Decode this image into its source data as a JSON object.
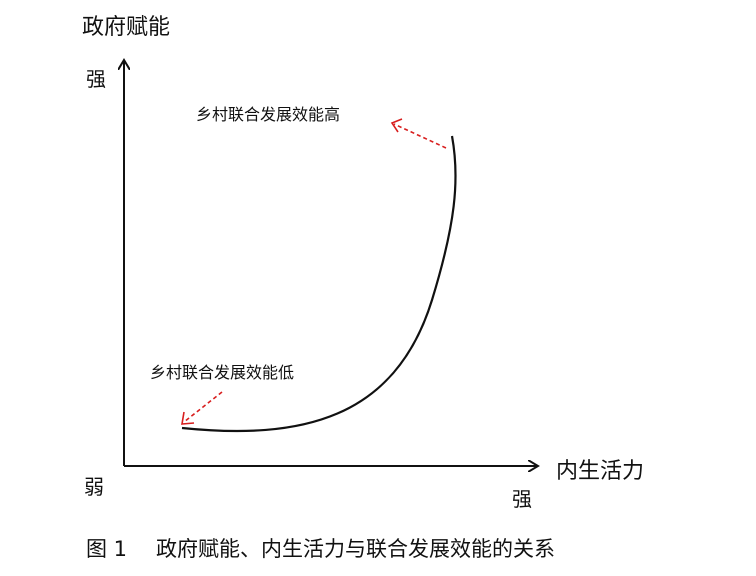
{
  "diagram": {
    "y_axis_title": "政府赋能",
    "y_axis_high": "强",
    "origin_low": "弱",
    "x_axis_title": "内生活力",
    "x_axis_high": "强",
    "annotation_high": "乡村联合发展效能高",
    "annotation_low": "乡村联合发展效能低",
    "arrow_color": "#d81e1e",
    "line_color": "#111111"
  },
  "caption": {
    "figure_number": "图 1",
    "text": "政府赋能、内生活力与联合发展效能的关系"
  }
}
